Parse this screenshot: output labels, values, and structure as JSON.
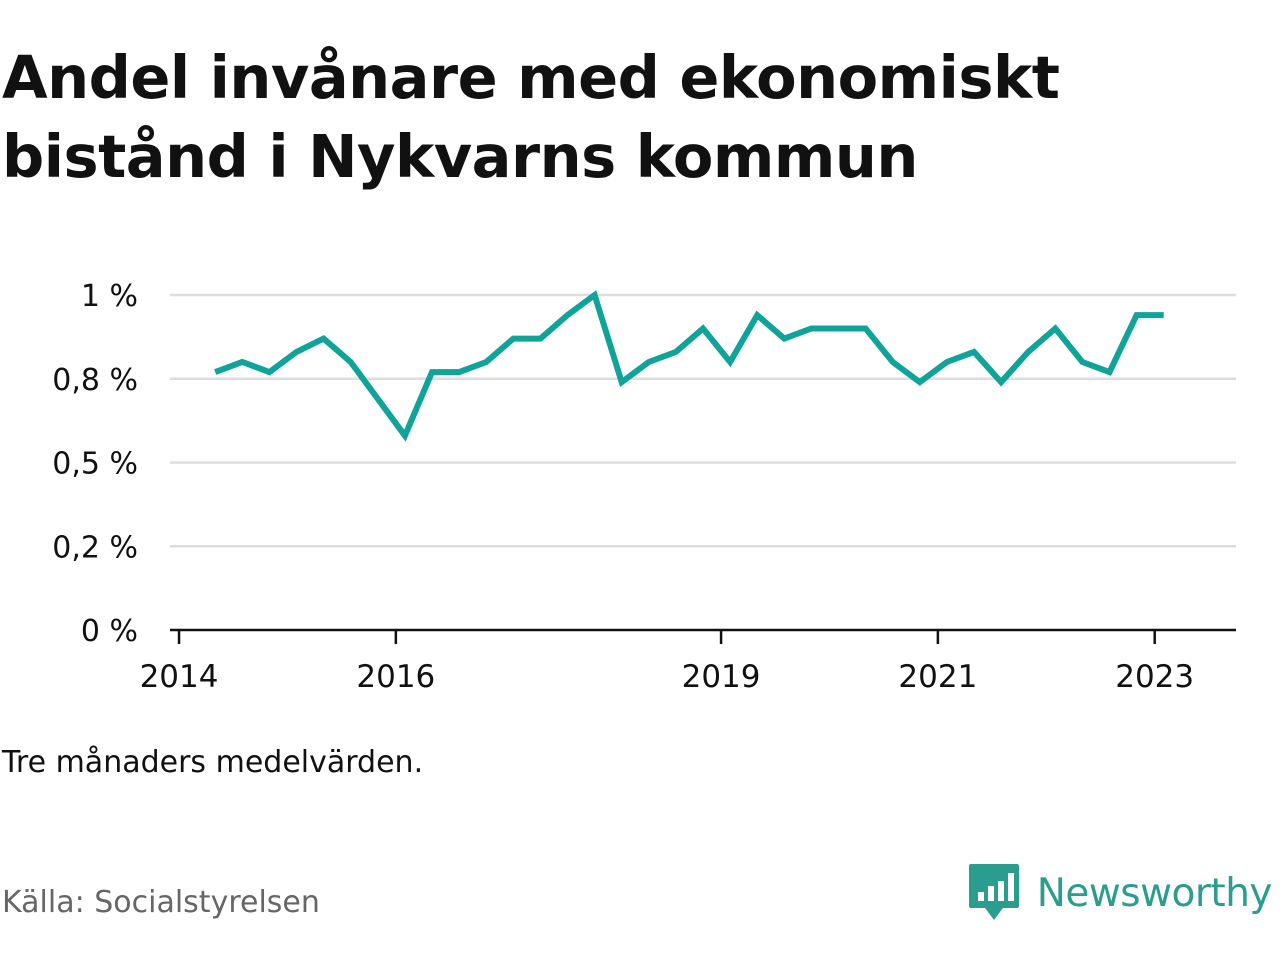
{
  "title": "Andel invånare med ekonomiskt bistånd i Nykvarns kommun",
  "note": "Tre månaders medelvärden.",
  "source": "Källa: Socialstyrelsen",
  "brand": {
    "name": "Newsworthy",
    "icon": "bar-chart-speech-bubble-icon",
    "color": "#2a9d8f"
  },
  "colors": {
    "line": "#0fa39a",
    "grid": "#dddddd",
    "axis": "#111111"
  },
  "chart_data": {
    "type": "line",
    "title": "Andel invånare med ekonomiskt bistånd i Nykvarns kommun",
    "xlabel": "",
    "ylabel": "",
    "grid": true,
    "ylim": [
      0,
      1
    ],
    "y_ticks": [
      {
        "value": 0,
        "label": "0 %"
      },
      {
        "value": 0.25,
        "label": "0,2 %"
      },
      {
        "value": 0.5,
        "label": "0,5 %"
      },
      {
        "value": 0.75,
        "label": "0,8 %"
      },
      {
        "value": 1,
        "label": "1 %"
      }
    ],
    "x_ticks": [
      "2014",
      "2016",
      "2019",
      "2021",
      "2023"
    ],
    "x_range": [
      "2013-12",
      "2023-10"
    ],
    "series": [
      {
        "points": [
          [
            "2014-05",
            0.77
          ],
          [
            "2014-08",
            0.8
          ],
          [
            "2014-11",
            0.77
          ],
          [
            "2015-02",
            0.83
          ],
          [
            "2015-05",
            0.87
          ],
          [
            "2015-08",
            0.8
          ],
          [
            "2015-11",
            0.69
          ],
          [
            "2016-02",
            0.58
          ],
          [
            "2016-05",
            0.77
          ],
          [
            "2016-08",
            0.77
          ],
          [
            "2016-11",
            0.8
          ],
          [
            "2017-02",
            0.87
          ],
          [
            "2017-05",
            0.87
          ],
          [
            "2017-08",
            0.94
          ],
          [
            "2017-11",
            1.0
          ],
          [
            "2018-02",
            0.74
          ],
          [
            "2018-05",
            0.8
          ],
          [
            "2018-08",
            0.83
          ],
          [
            "2018-11",
            0.9
          ],
          [
            "2019-02",
            0.8
          ],
          [
            "2019-05",
            0.94
          ],
          [
            "2019-08",
            0.87
          ],
          [
            "2019-11",
            0.9
          ],
          [
            "2020-02",
            0.9
          ],
          [
            "2020-05",
            0.9
          ],
          [
            "2020-08",
            0.8
          ],
          [
            "2020-11",
            0.74
          ],
          [
            "2021-02",
            0.8
          ],
          [
            "2021-05",
            0.83
          ],
          [
            "2021-08",
            0.74
          ],
          [
            "2021-11",
            0.83
          ],
          [
            "2022-02",
            0.9
          ],
          [
            "2022-05",
            0.8
          ],
          [
            "2022-08",
            0.77
          ],
          [
            "2022-11",
            0.94
          ],
          [
            "2023-02",
            0.94
          ]
        ]
      }
    ]
  }
}
